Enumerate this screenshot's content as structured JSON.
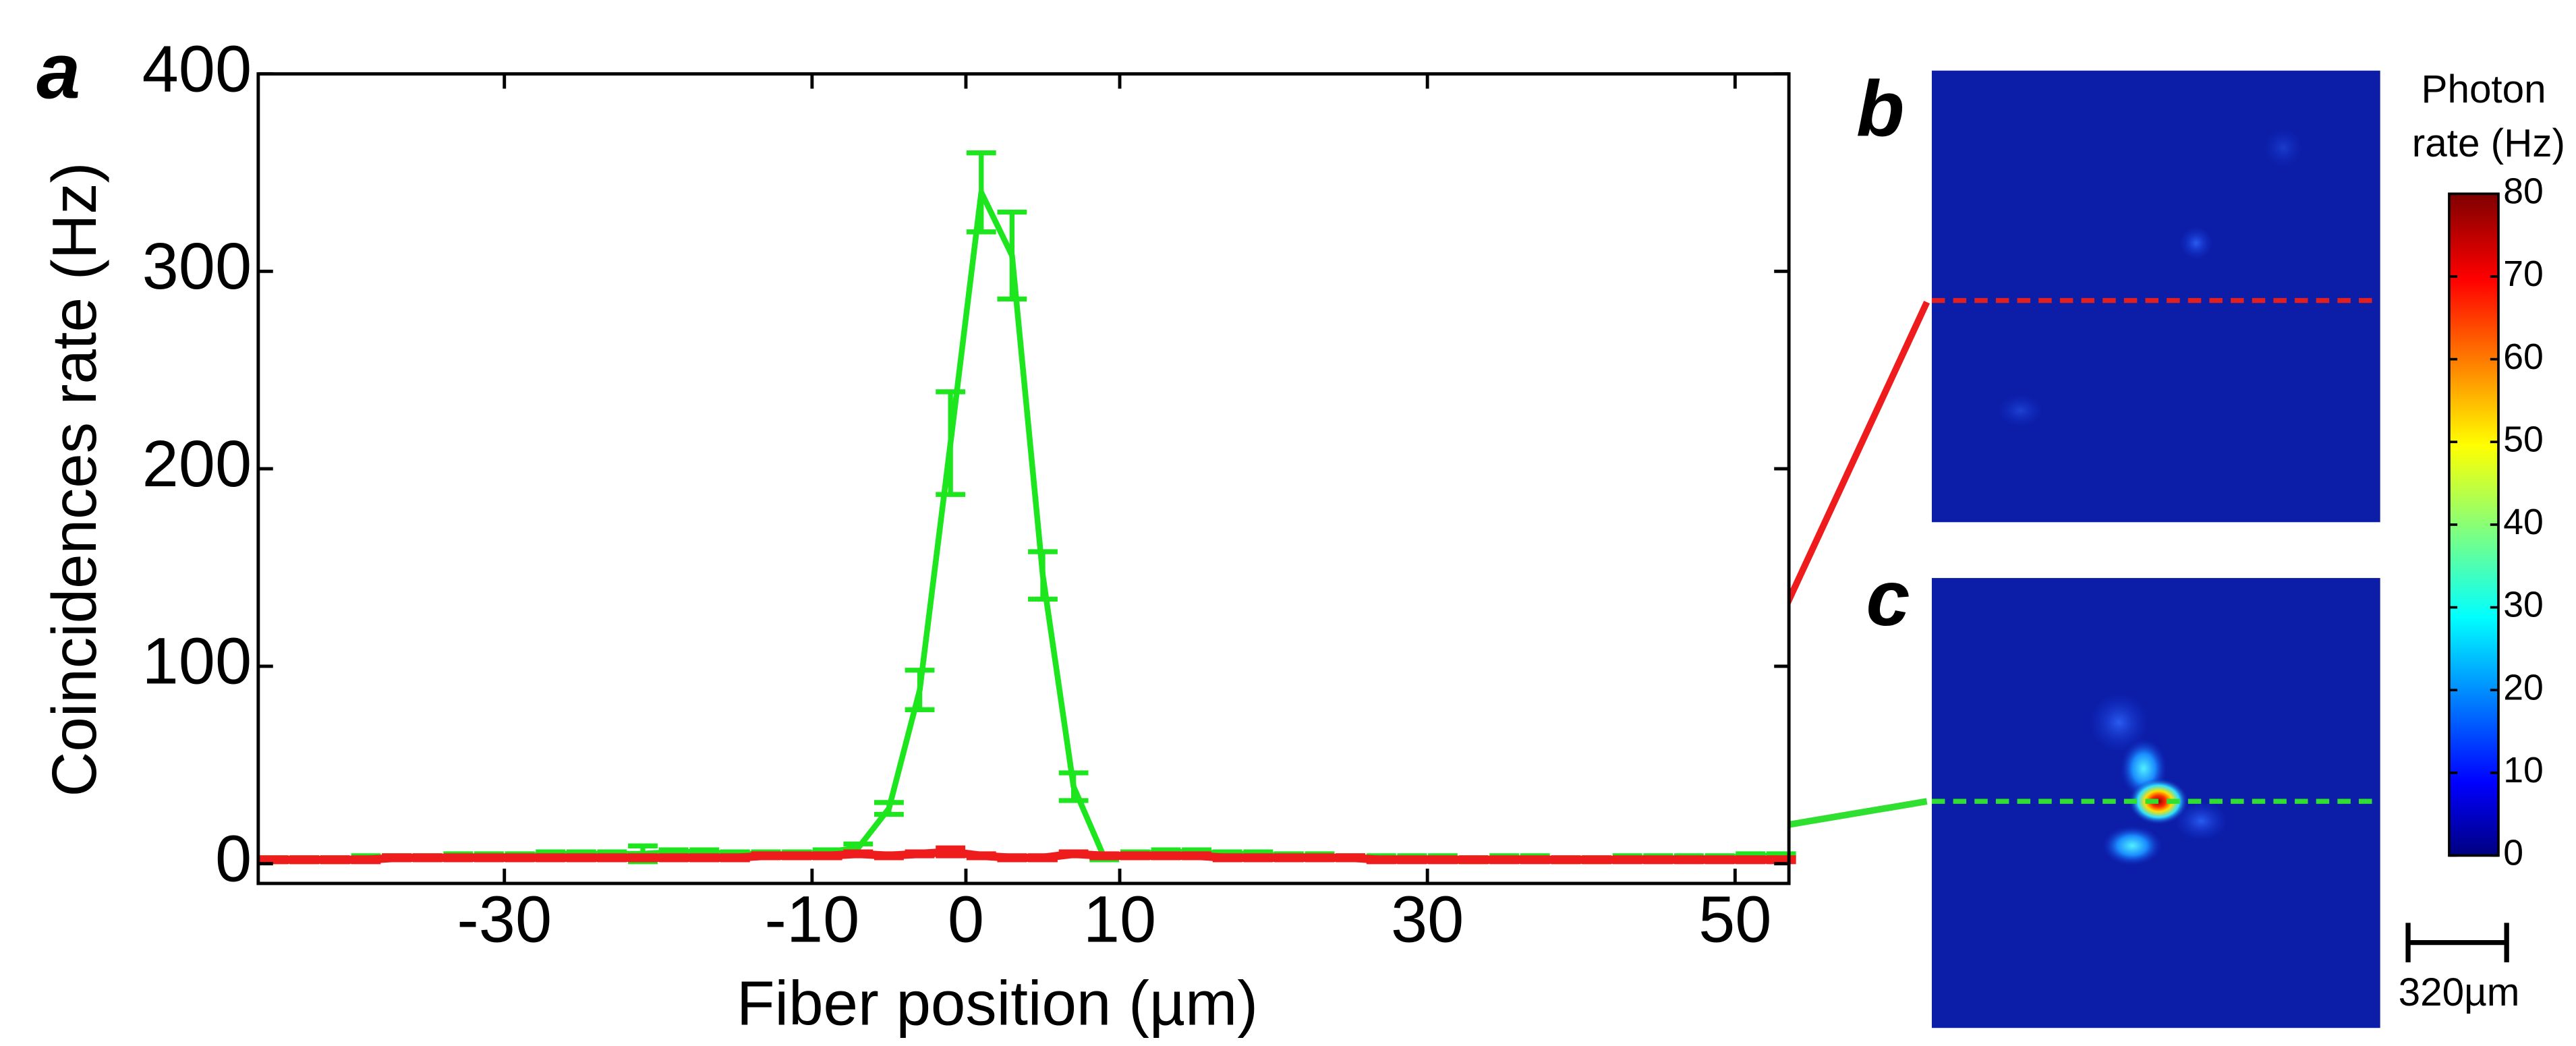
{
  "chart_data": [
    {
      "type": "line",
      "panel_label": "a",
      "xlabel": "Fiber position (µm)",
      "ylabel": "Coincidences rate (Hz)",
      "xlim": [
        -46,
        53.5
      ],
      "xticks": [
        -30,
        -10,
        0,
        10,
        30,
        50
      ],
      "ylim": [
        -10,
        400
      ],
      "yticks": [
        0,
        100,
        200,
        300,
        400
      ],
      "x": [
        -45,
        -43,
        -41,
        -39,
        -37,
        -35,
        -33,
        -31,
        -29,
        -27,
        -25,
        -23,
        -21,
        -19,
        -17,
        -15,
        -13,
        -11,
        -9,
        -7,
        -5,
        -3,
        -1,
        1,
        3,
        5,
        7,
        9,
        11,
        13,
        15,
        17,
        19,
        21,
        23,
        25,
        27,
        29,
        31,
        33,
        35,
        37,
        39,
        41,
        43,
        45,
        47,
        49,
        51,
        53
      ],
      "series": [
        {
          "color": "#1ee61e",
          "values": [
            2,
            2,
            2,
            3,
            3,
            3,
            4,
            4,
            4,
            5,
            5,
            5,
            5,
            6,
            6,
            5,
            5,
            5,
            6,
            8,
            28,
            88,
            213,
            340,
            308,
            146,
            39,
            3,
            5,
            6,
            6,
            5,
            5,
            4,
            4,
            3,
            3,
            3,
            3,
            2,
            3,
            3,
            2,
            2,
            3,
            3,
            3,
            3,
            4,
            4
          ],
          "errors": [
            1,
            1,
            1,
            1,
            1,
            1,
            1,
            1,
            1,
            1,
            1,
            1,
            4,
            1,
            1,
            1,
            1,
            1,
            1,
            2,
            3,
            10,
            26,
            20,
            22,
            12,
            7,
            1,
            1,
            1,
            1,
            1,
            1,
            1,
            1,
            1,
            1,
            1,
            1,
            1,
            1,
            1,
            1,
            1,
            1,
            1,
            1,
            1,
            1,
            1
          ]
        },
        {
          "color": "#ee1c1c",
          "values": [
            2,
            2,
            2,
            2,
            3,
            3,
            3,
            3,
            3,
            3,
            3,
            3,
            3,
            3,
            3,
            3,
            4,
            4,
            4,
            5,
            4,
            5,
            6,
            4,
            3,
            3,
            5,
            4,
            4,
            4,
            4,
            3,
            3,
            3,
            3,
            3,
            2,
            2,
            2,
            2,
            2,
            2,
            2,
            2,
            2,
            2,
            2,
            2,
            2,
            2
          ],
          "errors": [
            1,
            1,
            1,
            1,
            1,
            1,
            1,
            1,
            1,
            1,
            1,
            1,
            1,
            1,
            1,
            1,
            1,
            1,
            1,
            1,
            1,
            1,
            2,
            1,
            1,
            1,
            1,
            1,
            1,
            1,
            1,
            1,
            1,
            1,
            1,
            1,
            1,
            1,
            1,
            1,
            1,
            1,
            1,
            1,
            1,
            1,
            1,
            1,
            1,
            1
          ]
        }
      ]
    },
    {
      "type": "colorbar",
      "title": [
        "Photon",
        "rate (Hz)"
      ],
      "ylim": [
        0,
        80
      ],
      "yticks": [
        0,
        10,
        20,
        30,
        40,
        50,
        60,
        70,
        80
      ]
    }
  ],
  "images": [
    {
      "label": "b"
    },
    {
      "label": "c"
    }
  ],
  "scale_bar": {
    "label": "320µm"
  }
}
